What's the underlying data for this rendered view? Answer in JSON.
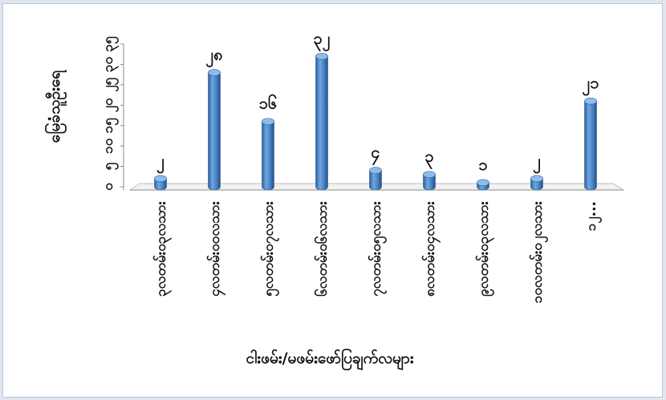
{
  "chart_data": {
    "type": "bar",
    "style": "3d-cylinder",
    "categories": [
      "၃လတမ်း၀၃လသား",
      "၄လတမ်း၀၀လသား",
      "၅လတမ်း၀၇လသား",
      "၆လတမ်း၀၆လသား",
      "၇လတမ်း၀၅လသား",
      "၈လတမ်း၀၄လသား",
      "၉လတမ်း၀၃လသား",
      "၁၀လတမ်း၀၂လသား",
      "၁၂..."
    ],
    "values": [
      2,
      28,
      16,
      32,
      4,
      3,
      1,
      2,
      21
    ],
    "data_labels": [
      "၂",
      "၂၈",
      "၁၆",
      "၃၂",
      "၄",
      "၃",
      "၁",
      "၂",
      "၂၁"
    ],
    "ylabel": "မြေခံသူဦးရေ",
    "xlabel": "ငါးဖမ်း/မဖမ်းဖော်ပြချက်လများ",
    "yticks": [
      "၀",
      "၅",
      "၁၀",
      "၁၅",
      "၂၀",
      "၂၅",
      "၃၀",
      "၃၅"
    ],
    "ylim": [
      0,
      35
    ],
    "grid": false,
    "legend": "none",
    "bar_color": "#4a86c8"
  }
}
